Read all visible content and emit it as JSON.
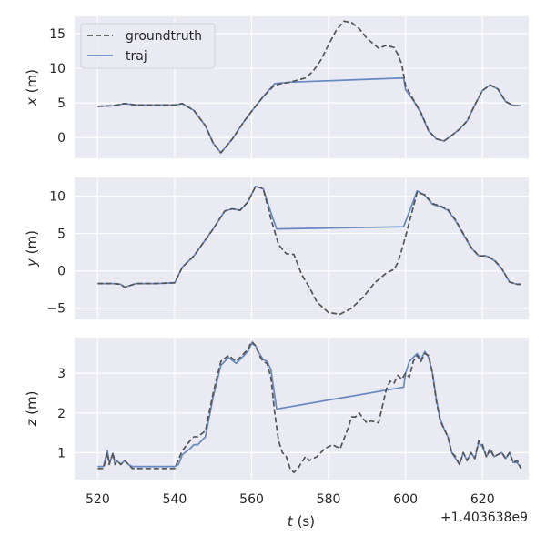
{
  "chart_data": {
    "type": "line",
    "x_offset_label": "+1.403638e9",
    "xlabel_var": "t",
    "xlabel_unit": " (s)",
    "xlim": [
      514,
      632
    ],
    "xticks": [
      520,
      540,
      560,
      580,
      600,
      620
    ],
    "legend": {
      "placement": "top-left",
      "entries": [
        {
          "name": "groundtruth",
          "style": "dashed",
          "color": "#555555"
        },
        {
          "name": "traj",
          "style": "solid",
          "color": "#6688c3"
        }
      ]
    },
    "grid": true,
    "background": "#eaeaf2",
    "subplots": [
      {
        "ylabel_var": "x",
        "ylabel_unit": " (m)",
        "ylim": [
          -3.0,
          17.5
        ],
        "yticks": [
          0,
          5,
          10,
          15
        ],
        "series": [
          {
            "name": "groundtruth",
            "x": [
              520,
              524,
              527,
              530,
              535,
              540,
              542,
              545,
              548,
              550,
              552,
              555,
              558,
              560,
              563,
              566,
              570,
              574,
              576,
              578,
              580,
              582,
              584,
              586,
              588,
              590,
              593,
              595,
              597,
              598,
              599,
              600,
              602,
              604,
              606,
              608,
              610,
              612,
              614,
              616,
              618,
              620,
              622,
              624,
              626,
              628,
              630
            ],
            "y": [
              4.5,
              4.6,
              4.9,
              4.7,
              4.7,
              4.7,
              4.9,
              3.9,
              1.7,
              -0.8,
              -2.2,
              -0.2,
              2.3,
              3.8,
              5.9,
              7.6,
              8.0,
              8.6,
              9.6,
              11.2,
              13.4,
              15.5,
              16.8,
              16.6,
              15.7,
              14.3,
              12.9,
              13.3,
              13.0,
              12.0,
              10.6,
              7.5,
              5.5,
              3.6,
              1.0,
              -0.2,
              -0.5,
              0.3,
              1.2,
              2.4,
              4.7,
              6.8,
              7.6,
              7.0,
              5.2,
              4.6,
              4.6
            ]
          },
          {
            "name": "traj",
            "x": [
              520,
              524,
              527,
              530,
              535,
              540,
              542,
              545,
              548,
              550,
              552,
              555,
              558,
              560,
              563,
              566,
              570,
              599.5,
              600,
              602,
              604,
              606,
              608,
              610,
              612,
              614,
              616,
              618,
              620,
              622,
              624,
              626,
              628,
              630
            ],
            "y": [
              4.5,
              4.6,
              4.9,
              4.7,
              4.7,
              4.7,
              4.9,
              3.9,
              1.7,
              -0.8,
              -2.2,
              -0.2,
              2.3,
              3.8,
              5.9,
              7.8,
              8.0,
              8.6,
              6.9,
              5.4,
              3.5,
              0.9,
              -0.2,
              -0.5,
              0.3,
              1.2,
              2.4,
              4.7,
              6.8,
              7.6,
              7.0,
              5.2,
              4.6,
              4.6
            ]
          }
        ]
      },
      {
        "ylabel_var": "y",
        "ylabel_unit": " (m)",
        "ylim": [
          -6.5,
          12.5
        ],
        "yticks": [
          -5,
          0,
          5,
          10
        ],
        "series": [
          {
            "name": "groundtruth",
            "x": [
              520,
              524,
              526,
              527,
              530,
              535,
              540,
              542,
              545,
              550,
              553,
              555,
              557,
              559,
              561,
              563,
              565,
              567,
              569,
              571,
              573,
              575,
              577,
              580,
              583,
              586,
              589,
              592,
              595,
              597,
              598,
              599,
              600,
              602,
              603,
              605,
              607,
              609,
              611,
              613,
              615,
              617,
              619,
              621,
              623,
              625,
              627,
              629,
              630
            ],
            "y": [
              -1.7,
              -1.7,
              -1.8,
              -2.2,
              -1.7,
              -1.7,
              -1.6,
              0.5,
              2.0,
              5.6,
              8.0,
              8.3,
              8.1,
              9.2,
              11.3,
              11.0,
              7.0,
              3.5,
              2.3,
              2.2,
              -0.5,
              -2.2,
              -4.2,
              -5.6,
              -5.8,
              -5.0,
              -3.5,
              -1.6,
              -0.3,
              0.2,
              1.1,
              2.8,
              4.6,
              8.5,
              10.5,
              10.2,
              9.0,
              8.7,
              8.2,
              6.8,
              5.0,
              3.2,
              2.0,
              2.0,
              1.5,
              0.3,
              -1.5,
              -1.8,
              -1.8
            ]
          },
          {
            "name": "traj",
            "x": [
              520,
              524,
              526,
              527,
              530,
              535,
              540,
              542,
              545,
              550,
              553,
              555,
              557,
              559,
              561,
              563,
              565,
              566.5,
              599.5,
              600,
              602,
              603,
              605,
              607,
              609,
              611,
              613,
              615,
              617,
              619,
              621,
              623,
              625,
              627,
              629,
              630
            ],
            "y": [
              -1.7,
              -1.7,
              -1.8,
              -2.2,
              -1.7,
              -1.7,
              -1.6,
              0.5,
              2.0,
              5.6,
              8.0,
              8.3,
              8.1,
              9.2,
              11.3,
              11.0,
              7.8,
              5.6,
              5.9,
              6.6,
              9.3,
              10.7,
              10.1,
              8.9,
              8.6,
              8.1,
              6.7,
              4.9,
              3.1,
              2.0,
              2.0,
              1.4,
              0.3,
              -1.5,
              -1.8,
              -1.8
            ]
          }
        ]
      },
      {
        "ylabel_var": "z",
        "ylabel_unit": " (m)",
        "ylim": [
          0.32,
          3.9
        ],
        "yticks": [
          1,
          2,
          3
        ],
        "series": [
          {
            "name": "groundtruth",
            "x": [
              520,
              521.5,
              522.5,
              523,
              524,
              524.5,
              525,
              526,
              527,
              528,
              529,
              530,
              535,
              540,
              542,
              544,
              545,
              546,
              548,
              550,
              552,
              554,
              556,
              558,
              559,
              560,
              561,
              562,
              563,
              564,
              565,
              566,
              567,
              568,
              569,
              570,
              571,
              572,
              573,
              574,
              575,
              577,
              579,
              581,
              583,
              585,
              586,
              587,
              588,
              589,
              590,
              591,
              593,
              595,
              596,
              597,
              598,
              599,
              600,
              601,
              602,
              603,
              604,
              605,
              606,
              607,
              608,
              609,
              610,
              611,
              612,
              613,
              614,
              615,
              616,
              617,
              618,
              619,
              620,
              621,
              622,
              623,
              624,
              625,
              626,
              627,
              628,
              629,
              630
            ],
            "y": [
              0.6,
              0.6,
              1.0,
              0.7,
              1.0,
              0.7,
              0.8,
              0.7,
              0.8,
              0.7,
              0.6,
              0.6,
              0.6,
              0.6,
              1.05,
              1.3,
              1.4,
              1.4,
              1.55,
              2.5,
              3.3,
              3.45,
              3.3,
              3.5,
              3.6,
              3.8,
              3.7,
              3.45,
              3.3,
              3.25,
              2.9,
              2.0,
              1.3,
              1.0,
              0.9,
              0.6,
              0.5,
              0.6,
              0.75,
              0.9,
              0.8,
              0.9,
              1.1,
              1.2,
              1.1,
              1.6,
              1.9,
              1.9,
              2.0,
              1.85,
              1.75,
              1.8,
              1.75,
              2.6,
              2.8,
              2.75,
              2.95,
              2.85,
              3.0,
              2.9,
              3.3,
              3.45,
              3.3,
              3.5,
              3.45,
              3.0,
              2.3,
              1.8,
              1.6,
              1.4,
              1.0,
              0.9,
              0.7,
              1.0,
              0.8,
              1.0,
              0.85,
              1.3,
              1.2,
              0.9,
              1.1,
              0.9,
              0.95,
              1.0,
              0.85,
              1.0,
              0.75,
              0.8,
              0.6
            ]
          },
          {
            "name": "traj",
            "x": [
              520,
              521.5,
              522.5,
              523,
              524,
              524.5,
              525,
              526,
              527,
              528,
              529,
              530,
              535,
              540,
              541,
              542,
              544,
              545,
              546,
              548,
              550,
              552,
              554,
              556,
              558,
              559,
              560,
              561,
              562,
              563,
              564,
              565,
              566.5,
              599.5,
              600,
              601,
              602,
              603,
              604,
              605,
              606,
              607,
              608,
              609,
              610,
              611,
              612,
              613,
              614,
              615,
              616,
              617,
              618,
              619,
              620,
              621,
              622,
              623,
              624,
              625,
              626,
              627,
              628,
              629,
              630
            ],
            "y": [
              0.65,
              0.65,
              1.05,
              0.75,
              0.95,
              0.7,
              0.8,
              0.7,
              0.8,
              0.7,
              0.65,
              0.65,
              0.65,
              0.65,
              0.7,
              0.95,
              1.1,
              1.2,
              1.2,
              1.4,
              2.4,
              3.2,
              3.4,
              3.25,
              3.45,
              3.55,
              3.75,
              3.7,
              3.5,
              3.35,
              3.3,
              3.1,
              2.1,
              2.65,
              3.0,
              3.3,
              3.4,
              3.5,
              3.35,
              3.55,
              3.4,
              3.0,
              2.35,
              1.85,
              1.6,
              1.4,
              1.0,
              0.85,
              0.7,
              1.0,
              0.8,
              1.0,
              0.85,
              1.25,
              1.15,
              0.9,
              1.05,
              0.9,
              0.95,
              1.0,
              0.85,
              1.0,
              0.75,
              0.75,
              0.6
            ]
          }
        ]
      }
    ]
  }
}
